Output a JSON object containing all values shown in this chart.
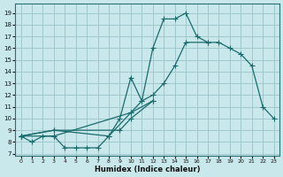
{
  "bg_color": "#c8e8ec",
  "grid_color": "#a0c8cc",
  "line_color": "#1a6b6b",
  "xlabel": "Humidex (Indice chaleur)",
  "xlim": [
    -0.5,
    23.5
  ],
  "ylim": [
    6.8,
    19.8
  ],
  "yticks": [
    7,
    8,
    9,
    10,
    11,
    12,
    13,
    14,
    15,
    16,
    17,
    18,
    19
  ],
  "xticks": [
    0,
    1,
    2,
    3,
    4,
    5,
    6,
    7,
    8,
    9,
    10,
    11,
    12,
    13,
    14,
    15,
    16,
    17,
    18,
    19,
    20,
    21,
    22,
    23
  ],
  "series1_x": [
    0,
    1,
    2,
    3,
    4,
    5,
    6,
    7,
    8,
    9,
    10,
    11,
    12,
    13,
    14,
    15,
    16,
    17
  ],
  "series1_y": [
    8.5,
    8.0,
    8.5,
    8.5,
    7.5,
    7.5,
    7.5,
    7.5,
    8.5,
    10.0,
    13.5,
    11.5,
    16.0,
    18.5,
    18.5,
    19.0,
    17.0,
    16.5
  ],
  "series2_x": [
    0,
    3,
    10,
    11,
    12,
    13,
    14,
    15,
    17,
    18,
    19,
    20,
    21,
    22,
    23
  ],
  "series2_y": [
    8.5,
    8.5,
    10.5,
    11.5,
    12.0,
    13.0,
    14.5,
    16.5,
    16.5,
    16.5,
    16.0,
    15.5,
    14.5,
    11.0,
    10.0
  ],
  "series3_x": [
    0,
    3,
    8,
    10,
    12
  ],
  "series3_y": [
    8.5,
    9.0,
    8.5,
    10.5,
    11.5
  ],
  "series4_x": [
    0,
    3,
    9,
    10,
    12
  ],
  "series4_y": [
    8.5,
    9.0,
    9.0,
    10.0,
    11.5
  ]
}
